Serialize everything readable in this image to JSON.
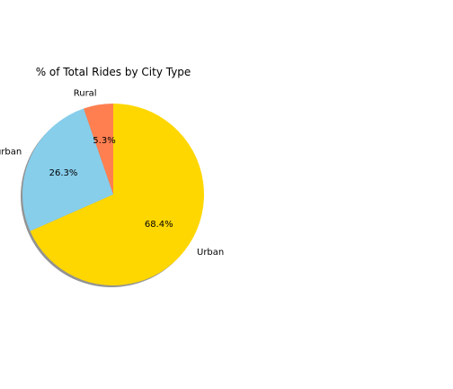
{
  "chart_data": {
    "type": "pie",
    "title": "% of Total Rides by City Type",
    "slices": [
      {
        "label": "Rural",
        "value": 5.3,
        "pct_label": "5.3%",
        "color": "#FF7F50"
      },
      {
        "label": "Suburban",
        "value": 26.3,
        "pct_label": "26.3%",
        "color": "#87CEEB"
      },
      {
        "label": "Urban",
        "value": 68.4,
        "pct_label": "68.4%",
        "color": "#FFD700"
      }
    ],
    "shadow": true,
    "explode": [
      0,
      0,
      0
    ]
  }
}
